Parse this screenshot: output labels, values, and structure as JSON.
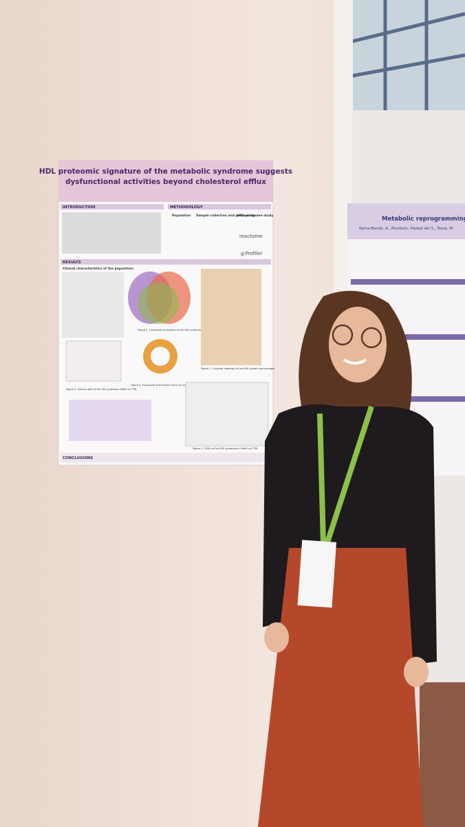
{
  "poster": {
    "title": [
      "HDL proteomic signature of the metabolic syndrome suggests",
      "dysfunctional activities beyond cholesterol efflux"
    ],
    "sections": [
      "INTRODUCTION",
      "METHODOLOGY",
      "RESULTS",
      "CONCLUSIONS"
    ],
    "methodology": [
      "Population",
      "Sample collection and processing",
      "HDL proteome study"
    ],
    "logos": [
      "reactome",
      "g:Profiler"
    ],
    "results_heading": "Clinical characteristics of the population",
    "captions": [
      "Figure 1. Functional annotation of the HDL proteome",
      "Figure 2. Z-scored heatmap of the HDL protein percentages",
      "Figure 3. Volcano plot of the HDL proteome MetS vs CTRL",
      "Figure 4. Functional enrichment terms of under-expressed proteins in MetS",
      "Figure 5. GSEA of the HDL proteome in MetS vs CTRL"
    ]
  },
  "side_poster": {
    "title": "Metabolic reprogramming in Gliob",
    "authors": "Reina-Bando, A., Murdoch, Piedad del S., Tome, M"
  }
}
